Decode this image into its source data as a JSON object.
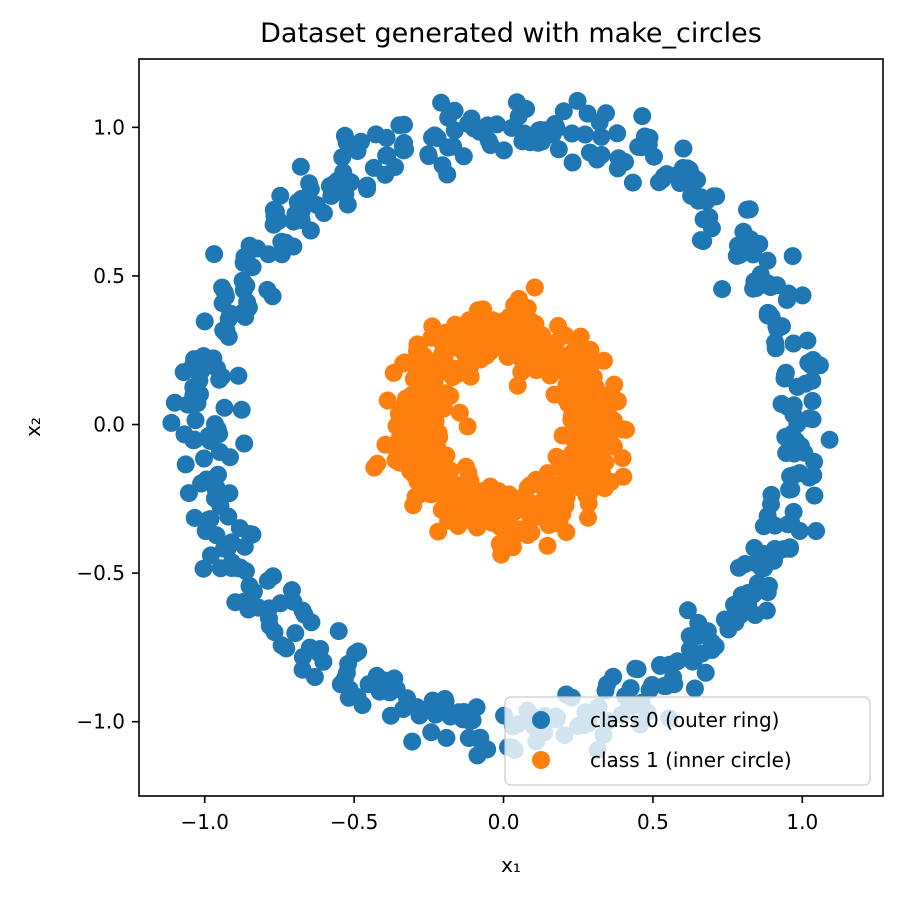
{
  "chart_data": {
    "type": "scatter",
    "title": "Dataset generated with make_circles",
    "xlabel": "x₁",
    "ylabel": "x₂",
    "xlim": [
      -1.22,
      1.27
    ],
    "ylim": [
      -1.25,
      1.23
    ],
    "xticks": [
      -1.0,
      -0.5,
      0.0,
      0.5,
      1.0
    ],
    "yticks": [
      -1.0,
      -0.5,
      0.0,
      0.5,
      1.0
    ],
    "xtick_labels": [
      "−1.0",
      "−0.5",
      "0.0",
      "0.5",
      "1.0"
    ],
    "ytick_labels": [
      "−1.0",
      "−0.5",
      "0.0",
      "0.5",
      "1.0"
    ],
    "grid": false,
    "legend_position": "lower-right",
    "series": [
      {
        "name": "class 0 (outer ring)",
        "color": "#1f77b4",
        "ring": {
          "center": [
            0.0,
            0.0
          ],
          "radius": 1.0,
          "noise": 0.05,
          "count": 500,
          "seed": 11
        }
      },
      {
        "name": "class 1 (inner circle)",
        "color": "#ff7f0e",
        "ring": {
          "center": [
            0.0,
            0.0
          ],
          "radius": 0.3,
          "noise": 0.05,
          "count": 500,
          "seed": 23
        }
      }
    ]
  }
}
